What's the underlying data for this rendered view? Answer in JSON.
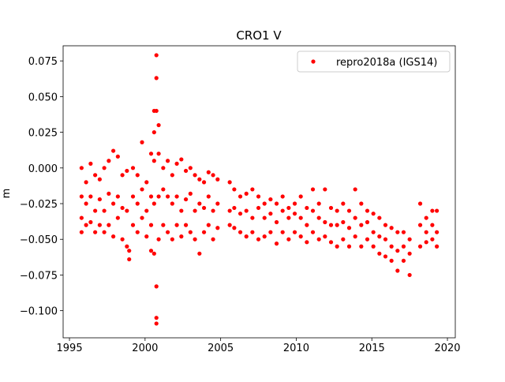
{
  "chart_data": {
    "type": "scatter",
    "title": "CRO1 V",
    "ylabel": "m",
    "xlim": [
      1994.58,
      2020.52
    ],
    "ylim": [
      -0.119,
      0.0856
    ],
    "xticks": [
      1995,
      2000,
      2005,
      2010,
      2015,
      2020
    ],
    "yticks": [
      {
        "value": 0.075,
        "label": "0.075"
      },
      {
        "value": 0.05,
        "label": "0.050"
      },
      {
        "value": 0.025,
        "label": "0.025"
      },
      {
        "value": 0,
        "label": "0.000"
      },
      {
        "value": -0.025,
        "label": "−0.025"
      },
      {
        "value": -0.05,
        "label": "−0.050"
      },
      {
        "value": -0.075,
        "label": "−0.075"
      },
      {
        "value": -0.1,
        "label": "−0.100"
      }
    ],
    "legend": "upper right",
    "x": [
      1995.8,
      1995.8,
      1995.8,
      1995.8,
      1996.1,
      1996.1,
      1996.1,
      1996.4,
      1996.4,
      1996.4,
      1996.7,
      1996.7,
      1996.7,
      1997.0,
      1997.0,
      1997.0,
      1997.3,
      1997.3,
      1997.3,
      1997.6,
      1997.6,
      1997.6,
      1997.9,
      1997.9,
      1997.9,
      1998.2,
      1998.2,
      1998.2,
      1998.5,
      1998.5,
      1998.5,
      1998.8,
      1998.8,
      1998.8,
      1998.95,
      1998.95,
      1999.2,
      1999.2,
      1999.2,
      1999.5,
      1999.5,
      1999.5,
      1999.8,
      1999.8,
      1999.8,
      2000.1,
      2000.1,
      2000.1,
      2000.4,
      2000.4,
      2000.4,
      2000.4,
      2000.6,
      2000.6,
      2000.6,
      2000.6,
      2000.6,
      2000.75,
      2000.75,
      2000.75,
      2000.75,
      2000.75,
      2000.75,
      2000.9,
      2000.9,
      2000.9,
      2000.9,
      2001.2,
      2001.2,
      2001.2,
      2001.5,
      2001.5,
      2001.5,
      2001.8,
      2001.8,
      2001.8,
      2002.1,
      2002.1,
      2002.1,
      2002.4,
      2002.4,
      2002.4,
      2002.7,
      2002.7,
      2002.7,
      2003.0,
      2003.0,
      2003.0,
      2003.3,
      2003.3,
      2003.3,
      2003.6,
      2003.6,
      2003.6,
      2003.9,
      2003.9,
      2003.9,
      2004.2,
      2004.2,
      2004.2,
      2004.5,
      2004.5,
      2004.5,
      2004.8,
      2004.8,
      2004.8,
      2005.6,
      2005.6,
      2005.6,
      2005.9,
      2005.9,
      2005.9,
      2006.3,
      2006.3,
      2006.3,
      2006.7,
      2006.7,
      2006.7,
      2007.1,
      2007.1,
      2007.1,
      2007.5,
      2007.5,
      2007.5,
      2007.9,
      2007.9,
      2007.9,
      2008.3,
      2008.3,
      2008.3,
      2008.7,
      2008.7,
      2008.7,
      2009.1,
      2009.1,
      2009.1,
      2009.5,
      2009.5,
      2009.5,
      2009.9,
      2009.9,
      2009.9,
      2010.3,
      2010.3,
      2010.3,
      2010.7,
      2010.7,
      2010.7,
      2011.1,
      2011.1,
      2011.1,
      2011.5,
      2011.5,
      2011.5,
      2011.9,
      2011.9,
      2011.9,
      2012.3,
      2012.3,
      2012.3,
      2012.7,
      2012.7,
      2012.7,
      2013.1,
      2013.1,
      2013.1,
      2013.5,
      2013.5,
      2013.5,
      2013.9,
      2013.9,
      2013.9,
      2014.3,
      2014.3,
      2014.3,
      2014.7,
      2014.7,
      2014.7,
      2015.1,
      2015.1,
      2015.1,
      2015.5,
      2015.5,
      2015.5,
      2015.9,
      2015.9,
      2015.9,
      2016.3,
      2016.3,
      2016.3,
      2016.7,
      2016.7,
      2016.7,
      2017.1,
      2017.1,
      2017.1,
      2017.5,
      2017.5,
      2017.5,
      2018.2,
      2018.2,
      2018.2,
      2018.6,
      2018.6,
      2018.6,
      2019.0,
      2019.0,
      2019.0,
      2019.3,
      2019.3,
      2019.3
    ],
    "series": [
      {
        "name": "repro2018a (IGS14)",
        "color": "#ff0000",
        "values": [
          -0.02,
          -0.035,
          -0.045,
          0.0,
          -0.01,
          -0.025,
          -0.04,
          0.003,
          -0.02,
          -0.038,
          -0.005,
          -0.03,
          -0.045,
          -0.008,
          -0.022,
          -0.04,
          0.0,
          -0.03,
          -0.045,
          0.005,
          -0.018,
          -0.04,
          0.012,
          -0.025,
          -0.048,
          0.008,
          -0.02,
          -0.035,
          -0.005,
          -0.028,
          -0.05,
          -0.002,
          -0.03,
          -0.055,
          -0.064,
          -0.058,
          0.0,
          -0.02,
          -0.04,
          -0.005,
          -0.025,
          -0.045,
          0.018,
          -0.015,
          -0.035,
          -0.01,
          -0.03,
          -0.048,
          0.01,
          -0.02,
          -0.04,
          -0.058,
          0.04,
          0.025,
          0.005,
          -0.025,
          -0.06,
          0.079,
          0.063,
          0.04,
          -0.083,
          -0.105,
          -0.109,
          0.03,
          0.01,
          -0.02,
          -0.05,
          0.0,
          -0.015,
          -0.04,
          0.005,
          -0.02,
          -0.045,
          -0.005,
          -0.025,
          -0.05,
          0.003,
          -0.02,
          -0.04,
          0.006,
          -0.03,
          -0.048,
          -0.002,
          -0.022,
          -0.04,
          0.0,
          -0.018,
          -0.045,
          -0.005,
          -0.03,
          -0.05,
          -0.008,
          -0.025,
          -0.06,
          -0.01,
          -0.028,
          -0.045,
          -0.003,
          -0.02,
          -0.04,
          -0.005,
          -0.03,
          -0.05,
          -0.008,
          -0.025,
          -0.042,
          -0.01,
          -0.03,
          -0.04,
          -0.015,
          -0.028,
          -0.042,
          -0.02,
          -0.032,
          -0.045,
          -0.018,
          -0.03,
          -0.048,
          -0.015,
          -0.035,
          -0.045,
          -0.02,
          -0.028,
          -0.05,
          -0.025,
          -0.035,
          -0.048,
          -0.022,
          -0.032,
          -0.045,
          -0.025,
          -0.038,
          -0.053,
          -0.02,
          -0.03,
          -0.045,
          -0.028,
          -0.035,
          -0.05,
          -0.025,
          -0.032,
          -0.045,
          -0.02,
          -0.035,
          -0.048,
          -0.028,
          -0.04,
          -0.052,
          -0.015,
          -0.03,
          -0.045,
          -0.025,
          -0.035,
          -0.05,
          -0.015,
          -0.038,
          -0.048,
          -0.028,
          -0.04,
          -0.052,
          -0.03,
          -0.04,
          -0.055,
          -0.025,
          -0.038,
          -0.05,
          -0.03,
          -0.042,
          -0.055,
          -0.015,
          -0.035,
          -0.048,
          -0.025,
          -0.04,
          -0.055,
          -0.03,
          -0.038,
          -0.05,
          -0.032,
          -0.045,
          -0.055,
          -0.035,
          -0.048,
          -0.06,
          -0.04,
          -0.05,
          -0.062,
          -0.042,
          -0.055,
          -0.065,
          -0.045,
          -0.058,
          -0.072,
          -0.045,
          -0.055,
          -0.065,
          -0.05,
          -0.06,
          -0.075,
          -0.025,
          -0.04,
          -0.055,
          -0.035,
          -0.045,
          -0.052,
          -0.03,
          -0.04,
          -0.05,
          -0.03,
          -0.045,
          -0.055
        ]
      }
    ]
  }
}
